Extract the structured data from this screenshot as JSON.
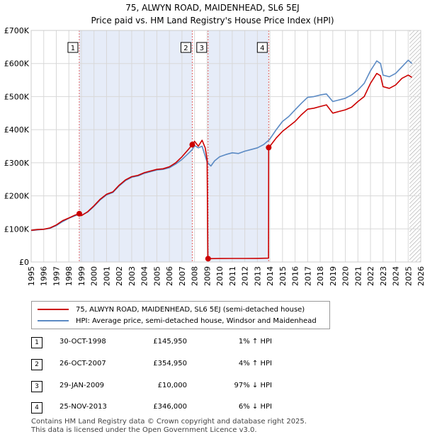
{
  "header": {
    "title": "75, ALWYN ROAD, MAIDENHEAD, SL6 5EJ",
    "subtitle": "Price paid vs. HM Land Registry's House Price Index (HPI)"
  },
  "colors": {
    "property_line": "#cc0000",
    "hpi_line": "#5b8ac4",
    "shade": "#dde6f6",
    "grid": "#d8d8d8"
  },
  "chart_data": {
    "type": "line",
    "x_range": [
      1995,
      2026
    ],
    "ylim": [
      0,
      700000
    ],
    "y_ticks": [
      0,
      100000,
      200000,
      300000,
      400000,
      500000,
      600000,
      700000
    ],
    "y_tick_labels": [
      "£0",
      "£100K",
      "£200K",
      "£300K",
      "£400K",
      "£500K",
      "£600K",
      "£700K"
    ],
    "x_ticks": [
      1995,
      1996,
      1997,
      1998,
      1999,
      2000,
      2001,
      2002,
      2003,
      2004,
      2005,
      2006,
      2007,
      2008,
      2009,
      2010,
      2011,
      2012,
      2013,
      2014,
      2015,
      2016,
      2017,
      2018,
      2019,
      2020,
      2021,
      2022,
      2023,
      2024,
      2025,
      2026
    ],
    "series": [
      {
        "name": "75, ALWYN ROAD, MAIDENHEAD, SL6 5EJ (semi-detached house)",
        "color": "#cc0000",
        "points": [
          [
            1995.0,
            96000
          ],
          [
            1995.5,
            98000
          ],
          [
            1996.0,
            99000
          ],
          [
            1996.5,
            103000
          ],
          [
            1997.0,
            112000
          ],
          [
            1997.5,
            125000
          ],
          [
            1998.0,
            133000
          ],
          [
            1998.5,
            142000
          ],
          [
            1998.83,
            145950
          ],
          [
            1999.0,
            140000
          ],
          [
            1999.5,
            152000
          ],
          [
            2000.0,
            170000
          ],
          [
            2000.5,
            190000
          ],
          [
            2001.0,
            205000
          ],
          [
            2001.5,
            212000
          ],
          [
            2002.0,
            232000
          ],
          [
            2002.5,
            248000
          ],
          [
            2003.0,
            258000
          ],
          [
            2003.5,
            262000
          ],
          [
            2004.0,
            270000
          ],
          [
            2004.5,
            275000
          ],
          [
            2005.0,
            280000
          ],
          [
            2005.5,
            282000
          ],
          [
            2006.0,
            288000
          ],
          [
            2006.5,
            300000
          ],
          [
            2007.0,
            318000
          ],
          [
            2007.5,
            340000
          ],
          [
            2007.82,
            354950
          ],
          [
            2008.0,
            365000
          ],
          [
            2008.3,
            350000
          ],
          [
            2008.6,
            368000
          ],
          [
            2008.85,
            345000
          ],
          [
            2009.0,
            310000
          ],
          [
            2009.06,
            10000
          ],
          [
            2010.0,
            10500
          ],
          [
            2011.0,
            10700
          ],
          [
            2012.0,
            10800
          ],
          [
            2013.0,
            11000
          ],
          [
            2013.89,
            11500
          ],
          [
            2013.9,
            346000
          ],
          [
            2014.0,
            350000
          ],
          [
            2014.5,
            375000
          ],
          [
            2015.0,
            395000
          ],
          [
            2015.5,
            410000
          ],
          [
            2016.0,
            425000
          ],
          [
            2016.5,
            445000
          ],
          [
            2017.0,
            462000
          ],
          [
            2017.5,
            465000
          ],
          [
            2018.0,
            470000
          ],
          [
            2018.5,
            475000
          ],
          [
            2019.0,
            450000
          ],
          [
            2019.5,
            455000
          ],
          [
            2020.0,
            460000
          ],
          [
            2020.5,
            468000
          ],
          [
            2021.0,
            485000
          ],
          [
            2021.5,
            500000
          ],
          [
            2022.0,
            540000
          ],
          [
            2022.5,
            570000
          ],
          [
            2022.8,
            563000
          ],
          [
            2023.0,
            530000
          ],
          [
            2023.5,
            525000
          ],
          [
            2024.0,
            535000
          ],
          [
            2024.5,
            555000
          ],
          [
            2025.0,
            565000
          ],
          [
            2025.3,
            558000
          ]
        ]
      },
      {
        "name": "HPI: Average price, semi-detached house, Windsor and Maidenhead",
        "color": "#5b8ac4",
        "points": [
          [
            1995.0,
            95000
          ],
          [
            1995.5,
            97000
          ],
          [
            1996.0,
            99000
          ],
          [
            1996.5,
            102000
          ],
          [
            1997.0,
            110000
          ],
          [
            1997.5,
            122000
          ],
          [
            1998.0,
            132000
          ],
          [
            1998.5,
            140000
          ],
          [
            1998.83,
            144000
          ],
          [
            1999.0,
            141000
          ],
          [
            1999.5,
            151000
          ],
          [
            2000.0,
            168000
          ],
          [
            2000.5,
            188000
          ],
          [
            2001.0,
            203000
          ],
          [
            2001.5,
            210000
          ],
          [
            2002.0,
            230000
          ],
          [
            2002.5,
            246000
          ],
          [
            2003.0,
            256000
          ],
          [
            2003.5,
            260000
          ],
          [
            2004.0,
            268000
          ],
          [
            2004.5,
            273000
          ],
          [
            2005.0,
            278000
          ],
          [
            2005.5,
            280000
          ],
          [
            2006.0,
            285000
          ],
          [
            2006.5,
            296000
          ],
          [
            2007.0,
            310000
          ],
          [
            2007.5,
            328000
          ],
          [
            2007.82,
            340000
          ],
          [
            2008.0,
            352000
          ],
          [
            2008.3,
            345000
          ],
          [
            2008.6,
            350000
          ],
          [
            2009.0,
            302000
          ],
          [
            2009.3,
            290000
          ],
          [
            2009.6,
            306000
          ],
          [
            2010.0,
            318000
          ],
          [
            2010.5,
            325000
          ],
          [
            2011.0,
            330000
          ],
          [
            2011.5,
            328000
          ],
          [
            2012.0,
            335000
          ],
          [
            2012.5,
            340000
          ],
          [
            2013.0,
            345000
          ],
          [
            2013.5,
            355000
          ],
          [
            2013.9,
            368000
          ],
          [
            2014.0,
            372000
          ],
          [
            2014.5,
            400000
          ],
          [
            2015.0,
            425000
          ],
          [
            2015.5,
            440000
          ],
          [
            2016.0,
            460000
          ],
          [
            2016.5,
            480000
          ],
          [
            2017.0,
            498000
          ],
          [
            2017.5,
            500000
          ],
          [
            2018.0,
            505000
          ],
          [
            2018.5,
            508000
          ],
          [
            2019.0,
            485000
          ],
          [
            2019.5,
            490000
          ],
          [
            2020.0,
            495000
          ],
          [
            2020.5,
            505000
          ],
          [
            2021.0,
            520000
          ],
          [
            2021.5,
            540000
          ],
          [
            2022.0,
            578000
          ],
          [
            2022.5,
            608000
          ],
          [
            2022.8,
            600000
          ],
          [
            2023.0,
            565000
          ],
          [
            2023.5,
            560000
          ],
          [
            2024.0,
            570000
          ],
          [
            2024.5,
            590000
          ],
          [
            2025.0,
            610000
          ],
          [
            2025.3,
            600000
          ]
        ]
      }
    ],
    "sales": [
      {
        "label": "1",
        "x": 1998.83,
        "value": 145950
      },
      {
        "label": "2",
        "x": 2007.82,
        "value": 354950
      },
      {
        "label": "3",
        "x": 2009.08,
        "value": 10000
      },
      {
        "label": "4",
        "x": 2013.9,
        "value": 346000
      }
    ],
    "shaded_spans": [
      [
        1998.83,
        2007.82
      ],
      [
        2009.08,
        2013.9
      ]
    ],
    "hatched_span": [
      2025.1,
      2026
    ]
  },
  "legend": {
    "property_label": "75, ALWYN ROAD, MAIDENHEAD, SL6 5EJ (semi-detached house)",
    "hpi_label": "HPI: Average price, semi-detached house, Windsor and Maidenhead"
  },
  "sales_table": [
    {
      "num": "1",
      "date": "30-OCT-1998",
      "price": "£145,950",
      "hpi": "1% ↑ HPI"
    },
    {
      "num": "2",
      "date": "26-OCT-2007",
      "price": "£354,950",
      "hpi": "4% ↑ HPI"
    },
    {
      "num": "3",
      "date": "29-JAN-2009",
      "price": "£10,000",
      "hpi": "97% ↓ HPI"
    },
    {
      "num": "4",
      "date": "25-NOV-2013",
      "price": "£346,000",
      "hpi": "6% ↓ HPI"
    }
  ],
  "footer": {
    "line1": "Contains HM Land Registry data © Crown copyright and database right 2025.",
    "line2": "This data is licensed under the Open Government Licence v3.0."
  }
}
